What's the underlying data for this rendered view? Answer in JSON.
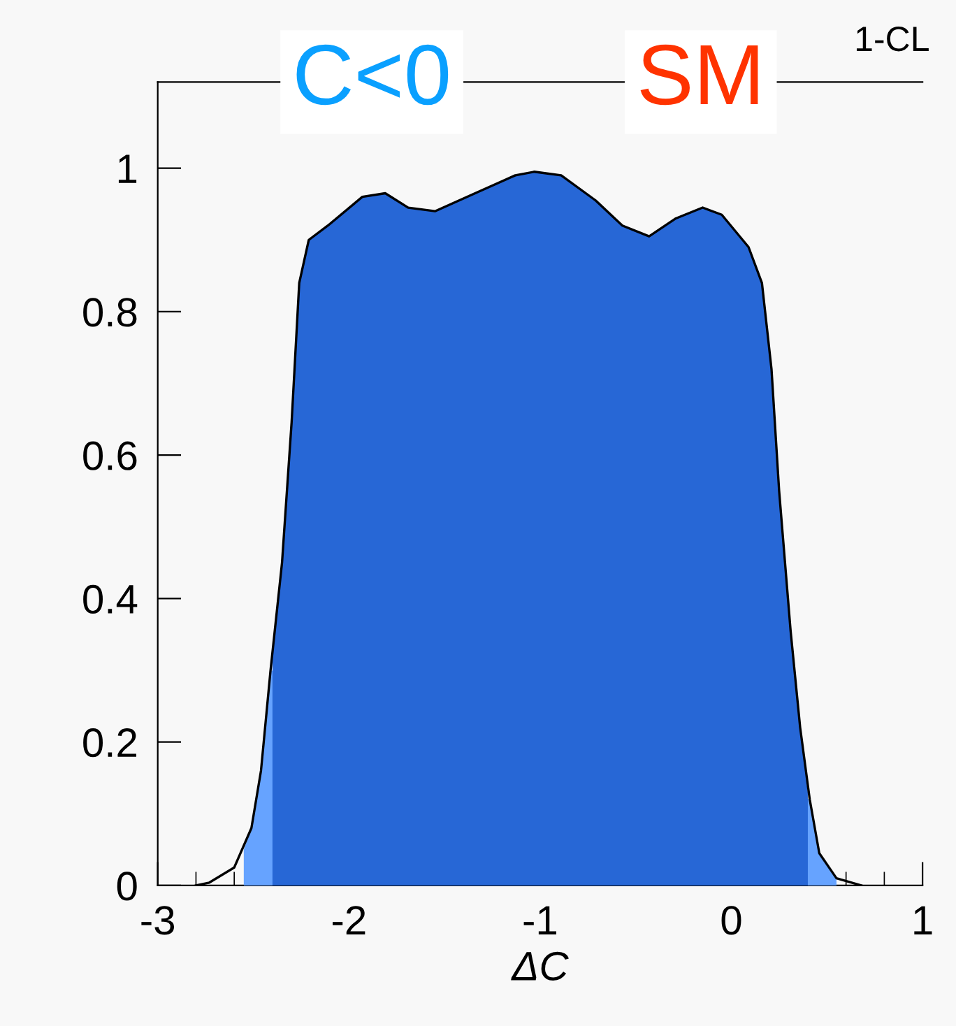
{
  "chart_data": {
    "type": "area",
    "ylabel": "1-CL",
    "xlabel": "ΔC",
    "annotations": [
      "C<0",
      "SM"
    ],
    "xlim": [
      -3,
      1
    ],
    "xticks": [
      -3,
      -2,
      -1,
      0,
      1
    ],
    "ylim": [
      0,
      1.12
    ],
    "yticks": [
      0,
      0.2,
      0.4,
      0.6,
      0.8,
      1
    ],
    "grid": false,
    "legend": false,
    "series": [
      {
        "type": "line",
        "color": "#000000",
        "x": [
          -2.8,
          -2.73,
          -2.6,
          -2.51,
          -2.46,
          -2.41,
          -2.35,
          -2.3,
          -2.26,
          -2.21,
          -2.11,
          -1.93,
          -1.81,
          -1.69,
          -1.55,
          -1.34,
          -1.13,
          -1.03,
          -0.89,
          -0.71,
          -0.57,
          -0.43,
          -0.29,
          -0.15,
          -0.05,
          0.09,
          0.16,
          0.21,
          0.25,
          0.31,
          0.36,
          0.41,
          0.46,
          0.55,
          0.68
        ],
        "values": [
          0,
          0.004,
          0.025,
          0.08,
          0.16,
          0.3,
          0.45,
          0.645,
          0.84,
          0.9,
          0.92,
          0.96,
          0.965,
          0.945,
          0.94,
          0.965,
          0.99,
          0.995,
          0.99,
          0.955,
          0.92,
          0.905,
          0.93,
          0.945,
          0.935,
          0.89,
          0.84,
          0.72,
          0.55,
          0.355,
          0.22,
          0.12,
          0.045,
          0.01,
          0
        ]
      },
      {
        "color": "#66a3ff",
        "x": [
          -2.55,
          -2.51,
          -2.46,
          -2.41,
          0.41,
          0.46,
          0.55
        ],
        "values": [
          0.05,
          0.08,
          0.16,
          0.3,
          0.12,
          0.045,
          0.01
        ]
      },
      {
        "color": "#2767d6",
        "x": [
          -2.4,
          -2.35,
          -2.3,
          -2.26,
          -2.21,
          -2.11,
          -1.93,
          -1.81,
          -1.69,
          -1.55,
          -1.34,
          -1.13,
          -1.03,
          -0.89,
          -0.71,
          -0.57,
          -0.43,
          -0.29,
          -0.15,
          -0.05,
          0.09,
          0.16,
          0.21,
          0.25,
          0.31,
          0.36,
          0.4
        ],
        "values": [
          0.32,
          0.45,
          0.645,
          0.84,
          0.9,
          0.92,
          0.96,
          0.965,
          0.945,
          0.94,
          0.965,
          0.99,
          0.995,
          0.99,
          0.955,
          0.92,
          0.905,
          0.93,
          0.945,
          0.935,
          0.89,
          0.84,
          0.72,
          0.55,
          0.355,
          0.22,
          0.13
        ]
      }
    ]
  }
}
